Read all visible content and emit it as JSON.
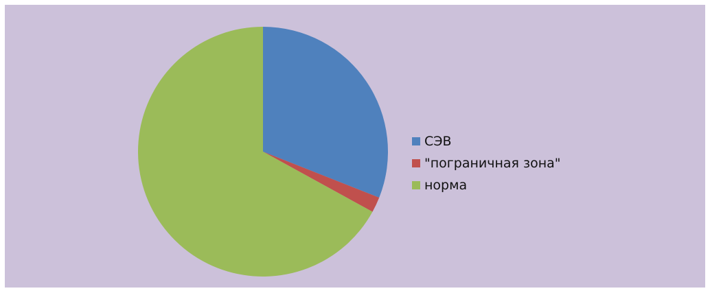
{
  "chart_data": {
    "type": "pie",
    "categories": [
      "СЭВ",
      "\"пограничная зона\"",
      "норма"
    ],
    "values": [
      31,
      2,
      67
    ],
    "colors": [
      "#4f81bd",
      "#c0504d",
      "#9bbb59"
    ],
    "legend_position": "right",
    "background": "#ccc1da"
  }
}
